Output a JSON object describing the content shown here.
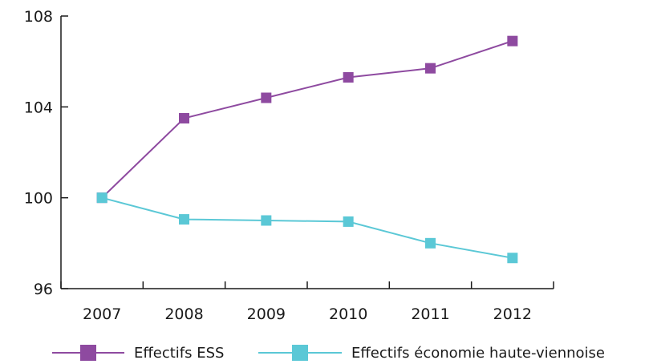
{
  "chart_data": {
    "type": "line",
    "categories": [
      "2007",
      "2008",
      "2009",
      "2010",
      "2011",
      "2012"
    ],
    "ylim": [
      96,
      108
    ],
    "yticks": [
      96,
      100,
      104,
      108
    ],
    "grid": false,
    "legend_position": "bottom",
    "series": [
      {
        "name": "Effectifs ESS",
        "color": "#8e4aa0",
        "marker": "square",
        "values": [
          100,
          103.5,
          104.4,
          105.3,
          105.7,
          106.9
        ]
      },
      {
        "name": "Effectifs économie haute-viennoise",
        "color": "#5bc8d6",
        "marker": "square",
        "values": [
          100,
          99.05,
          99.0,
          98.95,
          98.0,
          97.35
        ]
      }
    ]
  }
}
